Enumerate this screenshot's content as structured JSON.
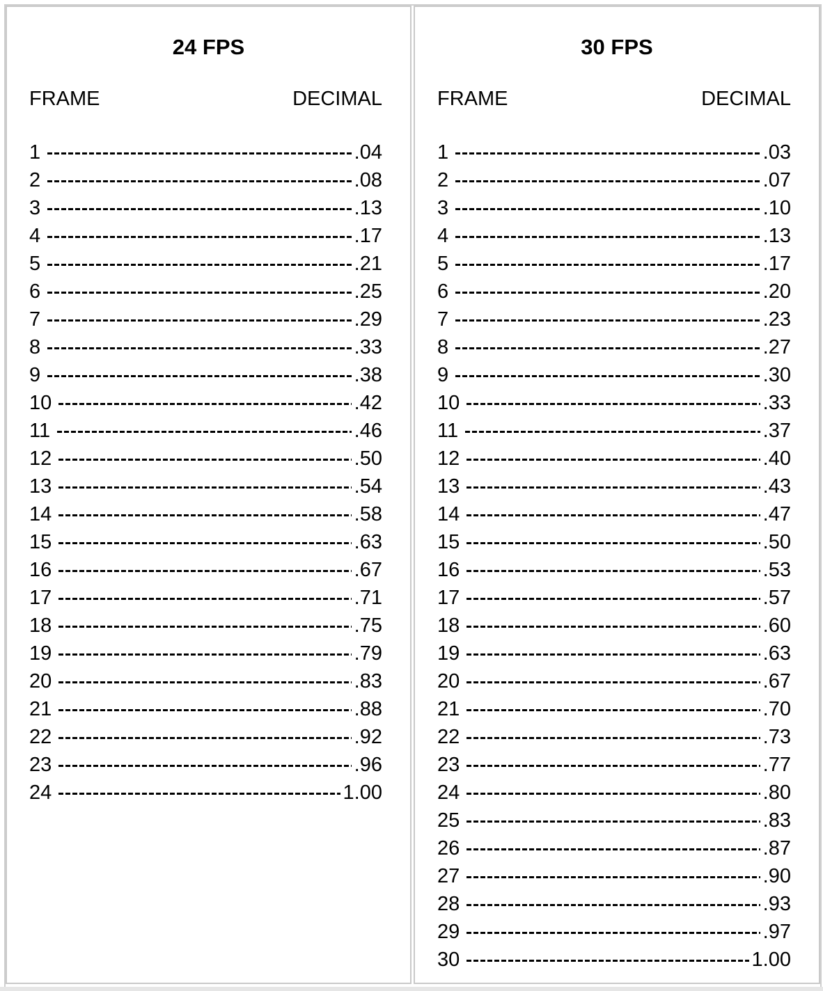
{
  "tables": [
    {
      "title": "24 FPS",
      "col_frame": "FRAME",
      "col_decimal": "DECIMAL",
      "rows": [
        {
          "frame": "1",
          "decimal": ".04"
        },
        {
          "frame": "2",
          "decimal": ".08"
        },
        {
          "frame": "3",
          "decimal": ".13"
        },
        {
          "frame": "4",
          "decimal": ".17"
        },
        {
          "frame": "5",
          "decimal": ".21"
        },
        {
          "frame": "6",
          "decimal": ".25"
        },
        {
          "frame": "7",
          "decimal": ".29"
        },
        {
          "frame": "8",
          "decimal": ".33"
        },
        {
          "frame": "9",
          "decimal": ".38"
        },
        {
          "frame": "10",
          "decimal": ".42"
        },
        {
          "frame": "11",
          "decimal": ".46"
        },
        {
          "frame": "12",
          "decimal": ".50"
        },
        {
          "frame": "13",
          "decimal": ".54"
        },
        {
          "frame": "14",
          "decimal": ".58"
        },
        {
          "frame": "15",
          "decimal": ".63"
        },
        {
          "frame": "16",
          "decimal": ".67"
        },
        {
          "frame": "17",
          "decimal": ".71"
        },
        {
          "frame": "18",
          "decimal": ".75"
        },
        {
          "frame": "19",
          "decimal": ".79"
        },
        {
          "frame": "20",
          "decimal": ".83"
        },
        {
          "frame": "21",
          "decimal": ".88"
        },
        {
          "frame": "22",
          "decimal": ".92"
        },
        {
          "frame": "23",
          "decimal": ".96"
        },
        {
          "frame": "24",
          "decimal": "1.00"
        }
      ]
    },
    {
      "title": "30 FPS",
      "col_frame": "FRAME",
      "col_decimal": "DECIMAL",
      "rows": [
        {
          "frame": "1",
          "decimal": ".03"
        },
        {
          "frame": "2",
          "decimal": ".07"
        },
        {
          "frame": "3",
          "decimal": ".10"
        },
        {
          "frame": "4",
          "decimal": ".13"
        },
        {
          "frame": "5",
          "decimal": ".17"
        },
        {
          "frame": "6",
          "decimal": ".20"
        },
        {
          "frame": "7",
          "decimal": ".23"
        },
        {
          "frame": "8",
          "decimal": ".27"
        },
        {
          "frame": "9",
          "decimal": ".30"
        },
        {
          "frame": "10",
          "decimal": ".33"
        },
        {
          "frame": "11",
          "decimal": ".37"
        },
        {
          "frame": "12",
          "decimal": ".40"
        },
        {
          "frame": "13",
          "decimal": ".43"
        },
        {
          "frame": "14",
          "decimal": ".47"
        },
        {
          "frame": "15",
          "decimal": ".50"
        },
        {
          "frame": "16",
          "decimal": ".53"
        },
        {
          "frame": "17",
          "decimal": ".57"
        },
        {
          "frame": "18",
          "decimal": ".60"
        },
        {
          "frame": "19",
          "decimal": ".63"
        },
        {
          "frame": "20",
          "decimal": ".67"
        },
        {
          "frame": "21",
          "decimal": ".70"
        },
        {
          "frame": "22",
          "decimal": ".73"
        },
        {
          "frame": "23",
          "decimal": ".77"
        },
        {
          "frame": "24",
          "decimal": ".80"
        },
        {
          "frame": "25",
          "decimal": ".83"
        },
        {
          "frame": "26",
          "decimal": ".87"
        },
        {
          "frame": "27",
          "decimal": ".90"
        },
        {
          "frame": "28",
          "decimal": ".93"
        },
        {
          "frame": "29",
          "decimal": ".97"
        },
        {
          "frame": "30",
          "decimal": "1.00"
        }
      ]
    }
  ]
}
